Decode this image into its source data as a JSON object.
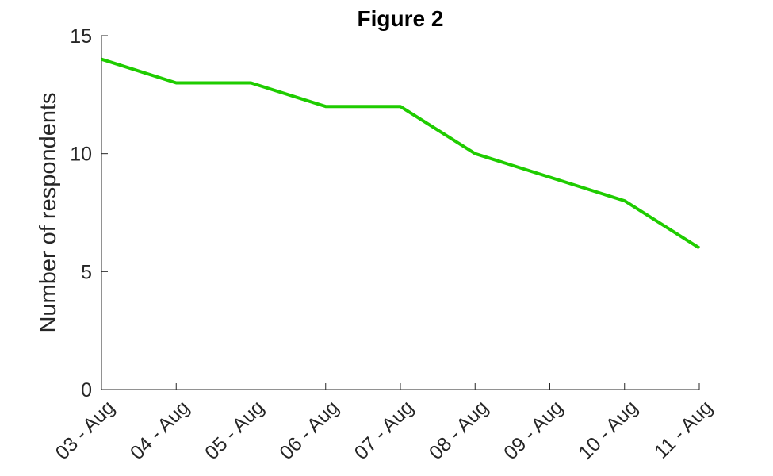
{
  "chart_data": {
    "type": "line",
    "title": "Figure 2",
    "xlabel": "",
    "ylabel": "Number of respondents",
    "categories": [
      "03 - Aug",
      "04 - Aug",
      "05 - Aug",
      "06 - Aug",
      "07 - Aug",
      "08 - Aug",
      "09 - Aug",
      "10 - Aug",
      "11 - Aug"
    ],
    "series": [
      {
        "values": [
          14,
          13,
          13,
          12,
          12,
          10,
          9,
          8,
          6
        ],
        "color": "#1fcc00"
      }
    ],
    "ylim": [
      0,
      15
    ],
    "yticks": [
      0,
      5,
      10,
      15
    ],
    "grid": false,
    "legend": "none"
  }
}
